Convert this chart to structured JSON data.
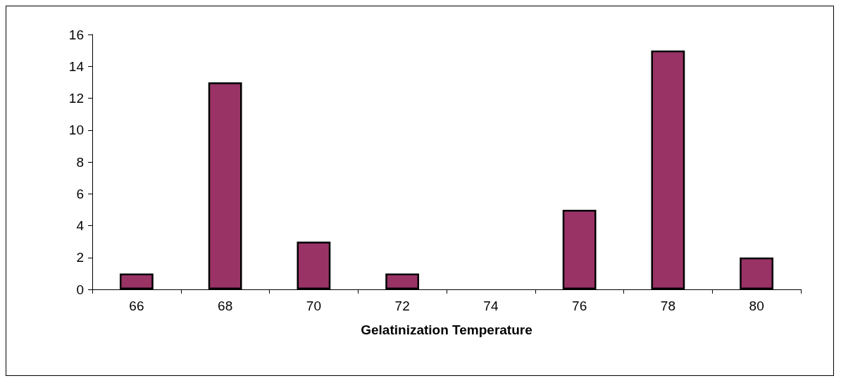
{
  "chart_data": {
    "type": "bar",
    "xlabel": "Gelatinization Temperature",
    "categories": [
      "66",
      "68",
      "70",
      "72",
      "74",
      "76",
      "78",
      "80"
    ],
    "values": [
      1,
      13,
      3,
      1,
      0,
      5,
      15,
      2
    ],
    "color": "#993366",
    "ylim": [
      0,
      16
    ],
    "yticks": [
      0,
      2,
      4,
      6,
      8,
      10,
      12,
      14,
      16
    ],
    "grid": false
  }
}
